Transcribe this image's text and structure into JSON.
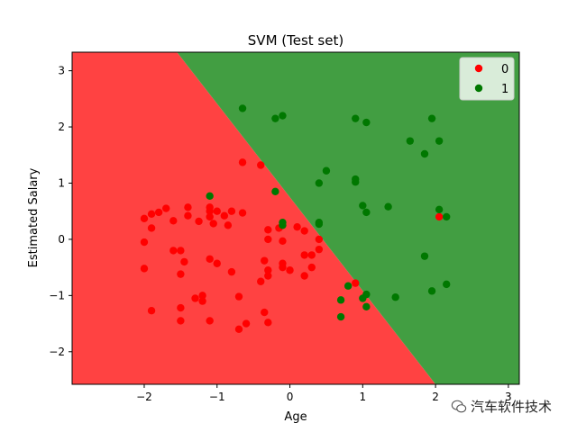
{
  "chart_data": {
    "type": "scatter",
    "title": "SVM (Test set)",
    "xlabel": "Age",
    "ylabel": "Estimated Salary",
    "xlim": [
      -2.99,
      3.15
    ],
    "ylim": [
      -2.58,
      3.33
    ],
    "xticks": [
      -2,
      -1,
      0,
      1,
      2,
      3
    ],
    "yticks": [
      -2,
      -1,
      0,
      1,
      2,
      3
    ],
    "decision_boundary": {
      "description": "linear",
      "points": [
        [
          -1.55,
          3.33
        ],
        [
          2.0,
          -2.58
        ]
      ]
    },
    "regions": [
      {
        "class": "0",
        "color": "#ff4242"
      },
      {
        "class": "1",
        "color": "#429e42"
      }
    ],
    "legend": {
      "placement": "top-right",
      "entries": [
        {
          "label": "0",
          "color": "#ff0000"
        },
        {
          "label": "1",
          "color": "#007800"
        }
      ]
    },
    "series": [
      {
        "name": "0",
        "color": "#ff0000",
        "points": [
          [
            -2.0,
            0.37
          ],
          [
            -1.9,
            0.45
          ],
          [
            -1.8,
            0.48
          ],
          [
            -1.7,
            0.55
          ],
          [
            -1.6,
            0.33
          ],
          [
            -2.0,
            -0.05
          ],
          [
            -1.9,
            0.2
          ],
          [
            -2.0,
            -0.52
          ],
          [
            -1.9,
            -1.27
          ],
          [
            -1.4,
            0.57
          ],
          [
            -1.4,
            0.42
          ],
          [
            -1.25,
            0.32
          ],
          [
            -1.1,
            0.57
          ],
          [
            -1.1,
            0.5
          ],
          [
            -1.1,
            0.4
          ],
          [
            -1.0,
            0.5
          ],
          [
            -0.9,
            0.42
          ],
          [
            -0.8,
            0.5
          ],
          [
            -0.85,
            0.25
          ],
          [
            -1.05,
            0.28
          ],
          [
            -0.65,
            0.47
          ],
          [
            -1.6,
            -0.2
          ],
          [
            -1.5,
            -0.2
          ],
          [
            -1.45,
            -0.4
          ],
          [
            -1.5,
            -0.62
          ],
          [
            -1.3,
            -1.05
          ],
          [
            -1.2,
            -1.0
          ],
          [
            -1.2,
            -1.1
          ],
          [
            -1.5,
            -1.22
          ],
          [
            -1.5,
            -1.45
          ],
          [
            -1.1,
            -0.35
          ],
          [
            -1.0,
            -0.43
          ],
          [
            -0.8,
            -0.58
          ],
          [
            -1.1,
            -1.45
          ],
          [
            -0.7,
            -1.02
          ],
          [
            -0.7,
            -1.6
          ],
          [
            -0.6,
            -1.5
          ],
          [
            -0.4,
            -0.75
          ],
          [
            -0.35,
            -0.38
          ],
          [
            -0.3,
            -0.55
          ],
          [
            -0.3,
            -0.65
          ],
          [
            -0.35,
            -1.3
          ],
          [
            -0.3,
            -1.48
          ],
          [
            -0.3,
            0.0
          ],
          [
            -0.3,
            0.17
          ],
          [
            -0.15,
            0.2
          ],
          [
            -0.1,
            -0.03
          ],
          [
            -0.1,
            -0.43
          ],
          [
            -0.1,
            -0.5
          ],
          [
            0.0,
            -0.55
          ],
          [
            0.1,
            0.22
          ],
          [
            0.2,
            0.15
          ],
          [
            0.2,
            -0.28
          ],
          [
            0.3,
            -0.28
          ],
          [
            0.3,
            -0.5
          ],
          [
            0.2,
            -0.65
          ],
          [
            0.4,
            0.0
          ],
          [
            0.4,
            -0.18
          ],
          [
            -0.65,
            1.37
          ],
          [
            -0.4,
            1.32
          ],
          [
            2.05,
            0.4
          ],
          [
            0.9,
            -0.78
          ]
        ]
      },
      {
        "name": "1",
        "color": "#007800",
        "points": [
          [
            -0.65,
            2.33
          ],
          [
            -0.2,
            2.15
          ],
          [
            -0.1,
            2.2
          ],
          [
            0.9,
            2.15
          ],
          [
            1.05,
            2.08
          ],
          [
            1.95,
            2.15
          ],
          [
            1.65,
            1.75
          ],
          [
            2.05,
            1.75
          ],
          [
            1.85,
            1.52
          ],
          [
            0.5,
            1.22
          ],
          [
            0.4,
            1.0
          ],
          [
            0.9,
            1.07
          ],
          [
            0.9,
            1.02
          ],
          [
            -0.2,
            0.85
          ],
          [
            1.0,
            0.6
          ],
          [
            1.05,
            0.48
          ],
          [
            1.35,
            0.58
          ],
          [
            2.05,
            0.53
          ],
          [
            2.15,
            0.4
          ],
          [
            -1.1,
            0.77
          ],
          [
            -0.1,
            0.3
          ],
          [
            -0.1,
            0.25
          ],
          [
            0.4,
            0.3
          ],
          [
            0.4,
            0.27
          ],
          [
            1.45,
            -1.03
          ],
          [
            1.05,
            -0.98
          ],
          [
            1.0,
            -1.05
          ],
          [
            1.05,
            -1.2
          ],
          [
            0.7,
            -1.08
          ],
          [
            0.7,
            -1.38
          ],
          [
            0.8,
            -0.83
          ],
          [
            1.85,
            -0.3
          ],
          [
            1.95,
            -0.92
          ],
          [
            2.15,
            -0.8
          ]
        ]
      }
    ]
  },
  "watermark": {
    "text": "汽车软件技术",
    "icon": "wechat-icon"
  }
}
